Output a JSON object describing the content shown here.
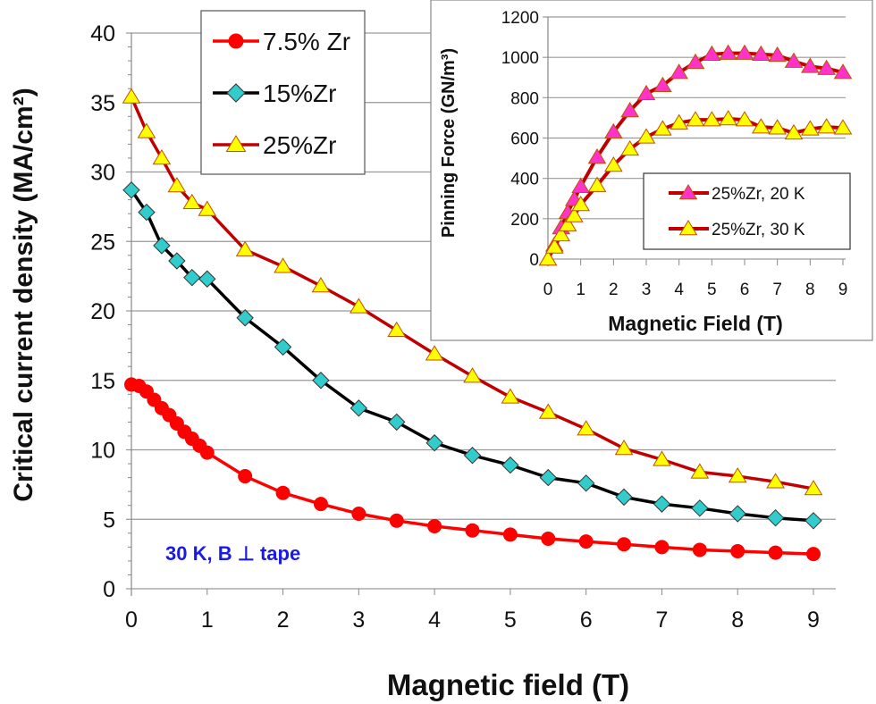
{
  "chart_data": [
    {
      "type": "line",
      "title": "",
      "xlabel": "Magnetic field (T)",
      "ylabel": "Critical current density (MA/cm²)",
      "xlim": [
        0,
        9
      ],
      "ylim": [
        0,
        40
      ],
      "xticks": [
        "0",
        "1",
        "2",
        "3",
        "4",
        "5",
        "6",
        "7",
        "8",
        "9"
      ],
      "yticks": [
        "0",
        "5",
        "10",
        "15",
        "20",
        "25",
        "30",
        "35",
        "40"
      ],
      "grid": "horizontal",
      "legend": "top-left",
      "annotation": "30 K, B ⊥ tape",
      "annotation_color": "#1a1ae6",
      "series": [
        {
          "name": "7.5% Zr",
          "marker": "circle",
          "color": "#ff0000",
          "line": "#ff0000",
          "x": [
            0,
            0.1,
            0.2,
            0.3,
            0.4,
            0.5,
            0.6,
            0.7,
            0.8,
            0.9,
            1,
            1.5,
            2,
            2.5,
            3,
            3.5,
            4,
            4.5,
            5,
            5.5,
            6,
            6.5,
            7,
            7.5,
            8,
            8.5,
            9
          ],
          "y": [
            14.7,
            14.6,
            14.2,
            13.6,
            13.0,
            12.5,
            11.9,
            11.3,
            10.8,
            10.3,
            9.8,
            8.1,
            6.9,
            6.1,
            5.4,
            4.9,
            4.5,
            4.2,
            3.9,
            3.6,
            3.4,
            3.2,
            3.0,
            2.8,
            2.7,
            2.6,
            2.5
          ]
        },
        {
          "name": "15%Zr",
          "marker": "diamond",
          "color": "#33cccc",
          "line": "#000000",
          "x": [
            0,
            0.2,
            0.4,
            0.6,
            0.8,
            1,
            1.5,
            2,
            2.5,
            3,
            3.5,
            4,
            4.5,
            5,
            5.5,
            6,
            6.5,
            7,
            7.5,
            8,
            8.5,
            9
          ],
          "y": [
            28.7,
            27.1,
            24.7,
            23.6,
            22.4,
            22.3,
            19.5,
            17.4,
            15.0,
            13.0,
            12.0,
            10.5,
            9.6,
            8.9,
            8.0,
            7.6,
            6.6,
            6.1,
            5.8,
            5.4,
            5.1,
            4.9
          ]
        },
        {
          "name": "25%Zr",
          "marker": "triangle",
          "color": "#ffff00",
          "line": "#c00000",
          "x": [
            0,
            0.2,
            0.4,
            0.6,
            0.8,
            1,
            1.5,
            2,
            2.5,
            3,
            3.5,
            4,
            4.5,
            5,
            5.5,
            6,
            6.5,
            7,
            7.5,
            8,
            8.5,
            9
          ],
          "y": [
            35.4,
            32.9,
            31.0,
            29.0,
            27.8,
            27.3,
            24.4,
            23.2,
            21.8,
            20.3,
            18.6,
            16.9,
            15.3,
            13.8,
            12.7,
            11.5,
            10.1,
            9.3,
            8.4,
            8.1,
            7.7,
            7.2
          ]
        }
      ]
    },
    {
      "type": "line",
      "title": "",
      "xlabel": "Magnetic Field (T)",
      "ylabel": "Pinning Force (GN/m³)",
      "xlim": [
        0,
        9
      ],
      "ylim": [
        0,
        1200
      ],
      "xticks": [
        "0",
        "1",
        "2",
        "3",
        "4",
        "5",
        "6",
        "7",
        "8",
        "9"
      ],
      "yticks": [
        "0",
        "200",
        "400",
        "600",
        "800",
        "1000",
        "1200"
      ],
      "grid": "horizontal",
      "legend": "bottom-right",
      "series": [
        {
          "name": "25%Zr, 20 K",
          "marker": "triangle",
          "color": "#ff33cc",
          "line": "#c00000",
          "x": [
            0,
            0.2,
            0.4,
            0.6,
            0.8,
            1,
            1.5,
            2,
            2.5,
            3,
            3.5,
            4,
            4.5,
            5,
            5.5,
            6,
            6.5,
            7,
            7.5,
            8,
            8.5,
            9
          ],
          "y": [
            0,
            70,
            155,
            230,
            295,
            360,
            505,
            630,
            735,
            820,
            860,
            925,
            975,
            1015,
            1020,
            1020,
            1015,
            1010,
            980,
            955,
            945,
            925
          ]
        },
        {
          "name": "25%Zr, 30 K",
          "marker": "triangle",
          "color": "#ffff00",
          "line": "#c00000",
          "x": [
            0,
            0.2,
            0.4,
            0.6,
            0.8,
            1,
            1.5,
            2,
            2.5,
            3,
            3.5,
            4,
            4.5,
            5,
            5.5,
            6,
            6.5,
            7,
            7.5,
            8,
            8.5,
            9
          ],
          "y": [
            0,
            60,
            120,
            170,
            215,
            270,
            365,
            465,
            545,
            605,
            645,
            675,
            690,
            690,
            695,
            690,
            655,
            650,
            625,
            645,
            655,
            650
          ]
        }
      ]
    }
  ]
}
